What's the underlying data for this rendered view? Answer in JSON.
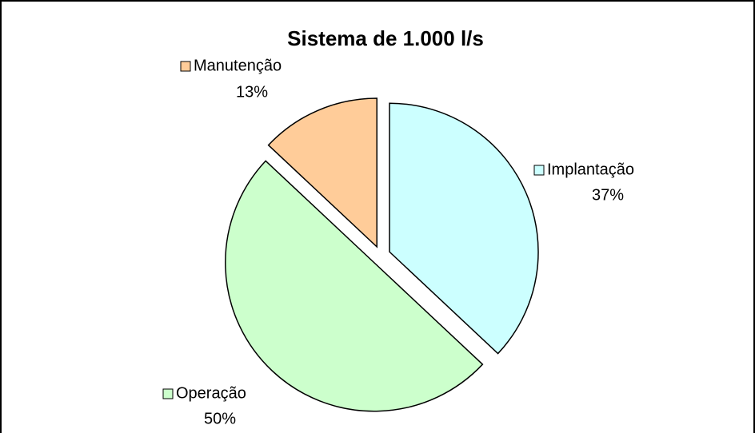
{
  "chart_data": {
    "type": "pie",
    "title": "Sistema de 1.000 l/s",
    "categories": [
      "Implantação",
      "Operação",
      "Manutenção"
    ],
    "values": [
      37,
      50,
      13
    ],
    "value_labels": [
      "37%",
      "50%",
      "13%"
    ],
    "colors": [
      "#ccffff",
      "#ccffcc",
      "#ffcc99"
    ]
  }
}
